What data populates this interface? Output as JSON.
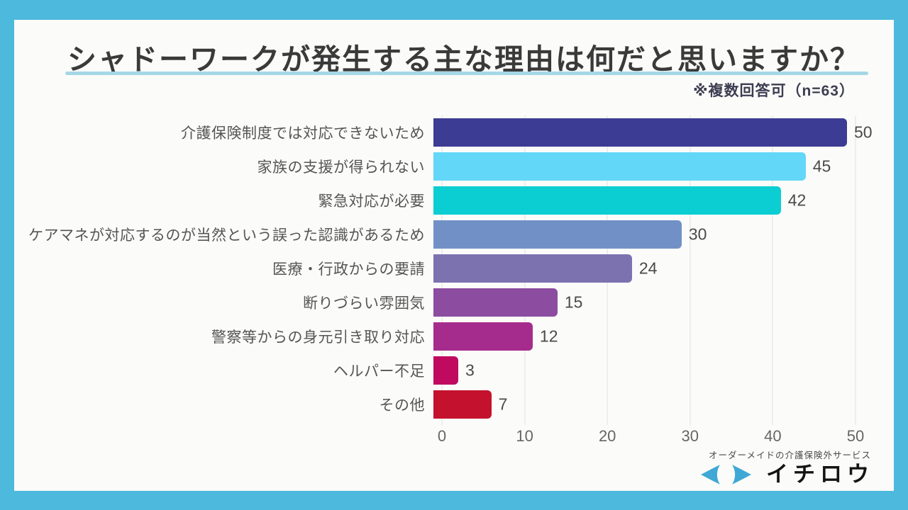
{
  "frame": {
    "background_color": "#4DB9DC",
    "card_color": "#FBFBF9"
  },
  "header": {
    "title": "シャドーワークが発生する主な理由は何だと思いますか？",
    "underline_color": "#A5D7E7",
    "note": "※複数回答可（n=63）"
  },
  "chart_data": {
    "type": "bar",
    "orientation": "horizontal",
    "title": "シャドーワークが発生する主な理由は何だと思いますか？",
    "subtitle": "※複数回答可（n=63）",
    "n": 63,
    "categories": [
      "介護保険制度では対応できないため",
      "家族の支援が得られない",
      "緊急対応が必要",
      "ケアマネが対応するのが当然という誤った認識があるため",
      "医療・行政からの要請",
      "断りづらい雰囲気",
      "警察等からの身元引き取り対応",
      "ヘルパー不足",
      "その他"
    ],
    "values": [
      50,
      45,
      42,
      30,
      24,
      15,
      12,
      3,
      7
    ],
    "bar_colors": [
      "#3C3C94",
      "#63D7F7",
      "#0BCED2",
      "#7191C6",
      "#7B72AF",
      "#8C4CA0",
      "#A52C8C",
      "#BF0A60",
      "#C4122E"
    ],
    "xlim": [
      0,
      50
    ],
    "x_ticks": [
      0,
      10,
      20,
      30,
      40,
      50
    ],
    "grid": true,
    "legend": false
  },
  "footer": {
    "tagline": "オーダーメイドの介護保険外サービス",
    "brand": "イチロウ",
    "mark_color": "#3FA8D5"
  }
}
